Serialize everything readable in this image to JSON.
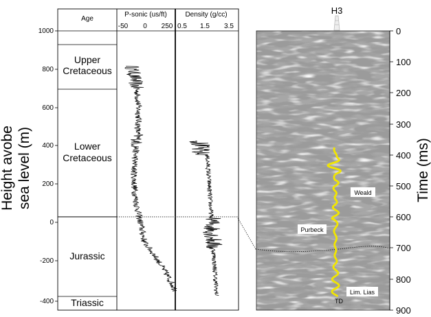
{
  "well_log": {
    "y_axis": {
      "label_line1": "Height avobe",
      "label_line2": "sea level (m)",
      "ticks": [
        "1000",
        "800",
        "600",
        "400",
        "200",
        "0",
        "-200",
        "-400"
      ],
      "range_m": [
        -420,
        1000
      ]
    },
    "age_column": {
      "header": "Age",
      "units": [
        {
          "line1": "Upper",
          "line2": "Cretaceous"
        },
        {
          "line1": "Lower",
          "line2": "Cretaceous"
        },
        {
          "line1": "Jurassic",
          "line2": ""
        },
        {
          "line1": "Triassic",
          "line2": ""
        }
      ],
      "boundaries_m": [
        920,
        690,
        35,
        -365
      ]
    },
    "sonic_track": {
      "header": "P-sonic (us/ft)",
      "ticks": [
        "-50",
        "0",
        "250"
      ],
      "data_top_m": 815,
      "data_bottom_m": -365,
      "color": "#000000"
    },
    "density_track": {
      "header": "Density (g/cc)",
      "ticks": [
        "0.5",
        "1.5",
        "3.5"
      ],
      "data_top_m": 425,
      "data_bottom_m": -385,
      "color": "#000000"
    },
    "correlation_datum_m": 35
  },
  "seismic_section": {
    "well_name": "H3",
    "time_axis": {
      "label": "Time (ms)",
      "ticks": [
        "0",
        "100",
        "200",
        "300",
        "400",
        "500",
        "600",
        "700",
        "800",
        "900"
      ],
      "range_ms": [
        0,
        900
      ]
    },
    "horizon_labels": [
      "Weald",
      "Purbeck",
      "Lim. Lias",
      "TD"
    ],
    "synthetic_trace_color": "#f2e600",
    "horizon_time_ms": 700
  }
}
